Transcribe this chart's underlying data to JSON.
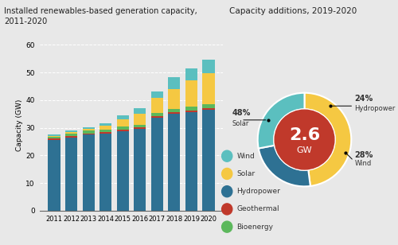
{
  "title_bar": "Installed renewables-based generation capacity,\n2011-2020",
  "title_donut": "Capacity additions, 2019-2020",
  "ylabel": "Capacity (GW)",
  "years": [
    "2011",
    "2012",
    "2013",
    "2014",
    "2015",
    "2016",
    "2017",
    "2018",
    "2019",
    "2020"
  ],
  "hydropower": [
    25.5,
    26.5,
    27.5,
    27.8,
    28.8,
    29.5,
    33.5,
    35.0,
    35.5,
    36.5
  ],
  "geothermal": [
    0.5,
    0.5,
    0.5,
    0.6,
    0.6,
    0.6,
    0.6,
    0.7,
    0.7,
    0.7
  ],
  "bioenergy": [
    0.8,
    0.9,
    0.9,
    1.0,
    1.0,
    1.0,
    1.1,
    1.2,
    1.3,
    1.4
  ],
  "solar": [
    0.2,
    0.4,
    0.6,
    1.2,
    2.5,
    4.0,
    5.5,
    7.0,
    9.5,
    11.0
  ],
  "wind": [
    0.5,
    0.6,
    0.8,
    1.0,
    1.5,
    2.0,
    2.5,
    4.5,
    4.5,
    5.0
  ],
  "color_hydro": "#2e7193",
  "color_geo": "#c0392b",
  "color_bio": "#5cb85c",
  "color_solar": "#f5c842",
  "color_wind": "#5bbfbf",
  "color_donut_solar": "#f5c842",
  "color_donut_hydro": "#2e7193",
  "color_donut_wind": "#5bbfbf",
  "color_center": "#c0392b",
  "donut_values": [
    48,
    24,
    28
  ],
  "bg_color": "#e8e8e8",
  "ylim": [
    0,
    62
  ],
  "yticks": [
    0,
    10,
    20,
    30,
    40,
    50,
    60
  ]
}
